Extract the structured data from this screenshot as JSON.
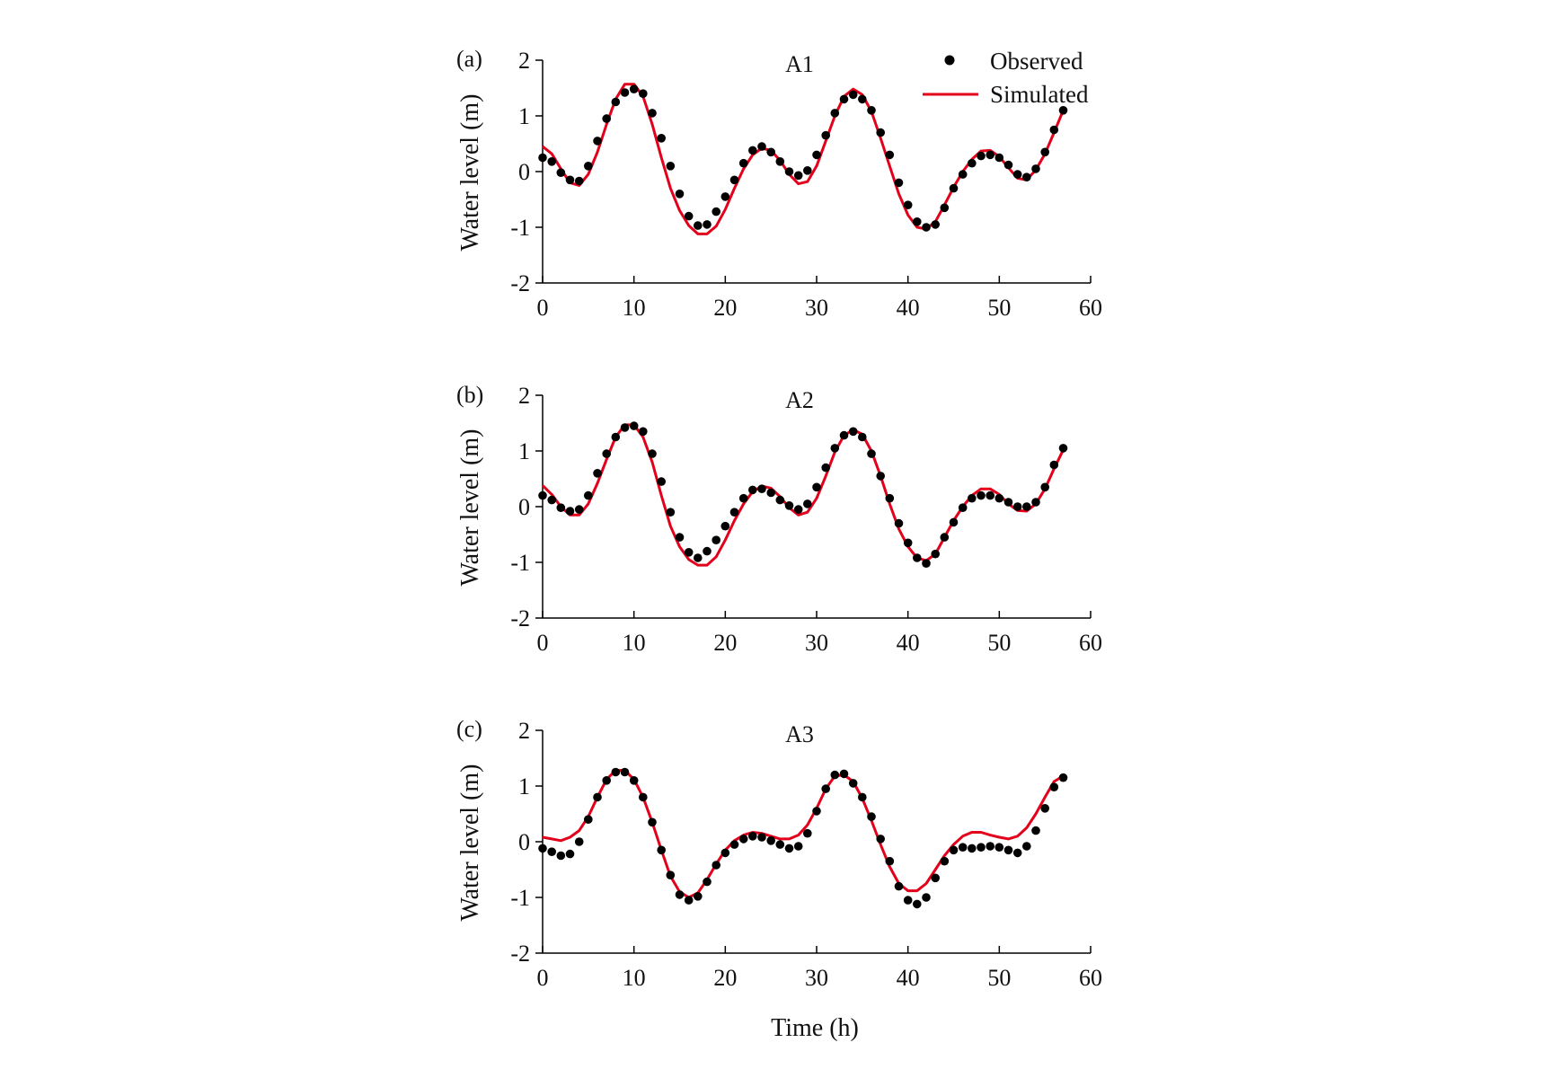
{
  "figure": {
    "xlabel": "Time (h)",
    "legend": {
      "observed_label": "Observed",
      "simulated_label": "Simulated",
      "placement": "top-right of panel (a)"
    },
    "colors": {
      "observed": "#000000",
      "simulated": "#e3001b",
      "axis": "#000000"
    }
  },
  "chart_data": [
    {
      "type": "line",
      "panel_label": "(a)",
      "title": "A1",
      "xlabel": "",
      "ylabel": "Water level  (m)",
      "xlim": [
        0,
        60
      ],
      "ylim": [
        -2,
        2
      ],
      "xticks": [
        0,
        10,
        20,
        30,
        40,
        50,
        60
      ],
      "yticks": [
        -2,
        -1,
        0,
        1,
        2
      ],
      "xtick_labels": [
        "0",
        "10",
        "20",
        "30",
        "40",
        "50",
        "60"
      ],
      "ytick_labels": [
        "-2",
        "-1",
        "0",
        "1",
        "2"
      ],
      "series": [
        {
          "name": "Observed",
          "style": "points",
          "x": [
            0,
            1,
            2,
            3,
            4,
            5,
            6,
            7,
            8,
            9,
            10,
            11,
            12,
            13,
            14,
            15,
            16,
            17,
            18,
            19,
            20,
            21,
            22,
            23,
            24,
            25,
            26,
            27,
            28,
            29,
            30,
            31,
            32,
            33,
            34,
            35,
            36,
            37,
            38,
            39,
            40,
            41,
            42,
            43,
            44,
            45,
            46,
            47,
            48,
            49,
            50,
            51,
            52,
            53,
            54,
            55,
            56,
            57
          ],
          "y": [
            0.25,
            0.18,
            -0.02,
            -0.15,
            -0.17,
            0.1,
            0.55,
            0.95,
            1.25,
            1.42,
            1.48,
            1.4,
            1.05,
            0.6,
            0.1,
            -0.4,
            -0.8,
            -0.97,
            -0.95,
            -0.72,
            -0.45,
            -0.15,
            0.15,
            0.38,
            0.45,
            0.35,
            0.18,
            0.0,
            -0.07,
            0.02,
            0.3,
            0.65,
            1.05,
            1.3,
            1.38,
            1.3,
            1.1,
            0.7,
            0.3,
            -0.2,
            -0.6,
            -0.9,
            -1.0,
            -0.95,
            -0.65,
            -0.3,
            -0.05,
            0.15,
            0.28,
            0.3,
            0.25,
            0.12,
            -0.05,
            -0.1,
            0.05,
            0.35,
            0.75,
            1.1
          ]
        },
        {
          "name": "Simulated",
          "style": "line",
          "x": [
            0,
            1,
            2,
            3,
            4,
            5,
            6,
            7,
            8,
            9,
            10,
            11,
            12,
            13,
            14,
            15,
            16,
            17,
            18,
            19,
            20,
            21,
            22,
            23,
            24,
            25,
            26,
            27,
            28,
            29,
            30,
            31,
            32,
            33,
            34,
            35,
            36,
            37,
            38,
            39,
            40,
            41,
            42,
            43,
            44,
            45,
            46,
            47,
            48,
            49,
            50,
            51,
            52,
            53,
            54,
            55,
            56,
            57
          ],
          "y": [
            0.45,
            0.32,
            0.05,
            -0.2,
            -0.25,
            -0.05,
            0.35,
            0.85,
            1.3,
            1.57,
            1.57,
            1.35,
            0.85,
            0.25,
            -0.3,
            -0.7,
            -0.97,
            -1.12,
            -1.12,
            -0.98,
            -0.68,
            -0.3,
            0.05,
            0.3,
            0.42,
            0.38,
            0.2,
            -0.05,
            -0.22,
            -0.18,
            0.1,
            0.55,
            1.0,
            1.35,
            1.48,
            1.38,
            1.08,
            0.6,
            0.1,
            -0.4,
            -0.78,
            -1.0,
            -1.03,
            -0.9,
            -0.6,
            -0.28,
            0.0,
            0.22,
            0.37,
            0.38,
            0.27,
            0.07,
            -0.12,
            -0.15,
            0.03,
            0.32,
            0.7,
            1.1
          ]
        }
      ]
    },
    {
      "type": "line",
      "panel_label": "(b)",
      "title": "A2",
      "xlabel": "",
      "ylabel": "Water level  (m)",
      "xlim": [
        0,
        60
      ],
      "ylim": [
        -2,
        2
      ],
      "xticks": [
        0,
        10,
        20,
        30,
        40,
        50,
        60
      ],
      "yticks": [
        -2,
        -1,
        0,
        1,
        2
      ],
      "xtick_labels": [
        "0",
        "10",
        "20",
        "30",
        "40",
        "50",
        "60"
      ],
      "ytick_labels": [
        "-2",
        "-1",
        "0",
        "1",
        "2"
      ],
      "series": [
        {
          "name": "Observed",
          "style": "points",
          "x": [
            0,
            1,
            2,
            3,
            4,
            5,
            6,
            7,
            8,
            9,
            10,
            11,
            12,
            13,
            14,
            15,
            16,
            17,
            18,
            19,
            20,
            21,
            22,
            23,
            24,
            25,
            26,
            27,
            28,
            29,
            30,
            31,
            32,
            33,
            34,
            35,
            36,
            37,
            38,
            39,
            40,
            41,
            42,
            43,
            44,
            45,
            46,
            47,
            48,
            49,
            50,
            51,
            52,
            53,
            54,
            55,
            56,
            57
          ],
          "y": [
            0.2,
            0.12,
            -0.02,
            -0.08,
            -0.05,
            0.2,
            0.6,
            0.95,
            1.25,
            1.42,
            1.45,
            1.35,
            0.95,
            0.45,
            -0.1,
            -0.55,
            -0.82,
            -0.92,
            -0.8,
            -0.6,
            -0.35,
            -0.1,
            0.15,
            0.3,
            0.32,
            0.25,
            0.12,
            0.02,
            -0.05,
            0.05,
            0.35,
            0.7,
            1.05,
            1.28,
            1.35,
            1.25,
            0.95,
            0.55,
            0.15,
            -0.3,
            -0.65,
            -0.92,
            -1.02,
            -0.85,
            -0.55,
            -0.28,
            -0.02,
            0.15,
            0.2,
            0.2,
            0.15,
            0.08,
            0.0,
            0.0,
            0.08,
            0.35,
            0.75,
            1.05
          ]
        },
        {
          "name": "Simulated",
          "style": "line",
          "x": [
            0,
            1,
            2,
            3,
            4,
            5,
            6,
            7,
            8,
            9,
            10,
            11,
            12,
            13,
            14,
            15,
            16,
            17,
            18,
            19,
            20,
            21,
            22,
            23,
            24,
            25,
            26,
            27,
            28,
            29,
            30,
            31,
            32,
            33,
            34,
            35,
            36,
            37,
            38,
            39,
            40,
            41,
            42,
            43,
            44,
            45,
            46,
            47,
            48,
            49,
            50,
            51,
            52,
            53,
            54,
            55,
            56,
            57
          ],
          "y": [
            0.38,
            0.22,
            0.0,
            -0.15,
            -0.15,
            0.05,
            0.42,
            0.85,
            1.25,
            1.47,
            1.47,
            1.25,
            0.8,
            0.2,
            -0.35,
            -0.72,
            -0.95,
            -1.05,
            -1.05,
            -0.9,
            -0.6,
            -0.25,
            0.05,
            0.27,
            0.37,
            0.33,
            0.18,
            -0.02,
            -0.15,
            -0.1,
            0.15,
            0.55,
            0.98,
            1.28,
            1.38,
            1.3,
            1.0,
            0.55,
            0.05,
            -0.4,
            -0.72,
            -0.92,
            -0.97,
            -0.85,
            -0.55,
            -0.25,
            0.0,
            0.2,
            0.32,
            0.32,
            0.22,
            0.05,
            -0.07,
            -0.08,
            0.05,
            0.32,
            0.68,
            1.02
          ]
        }
      ]
    },
    {
      "type": "line",
      "panel_label": "(c)",
      "title": "A3",
      "xlabel": "Time (h)",
      "ylabel": "Water level  (m)",
      "xlim": [
        0,
        60
      ],
      "ylim": [
        -2,
        2
      ],
      "xticks": [
        0,
        10,
        20,
        30,
        40,
        50,
        60
      ],
      "yticks": [
        -2,
        -1,
        0,
        1,
        2
      ],
      "xtick_labels": [
        "0",
        "10",
        "20",
        "30",
        "40",
        "50",
        "60"
      ],
      "ytick_labels": [
        "-2",
        "-1",
        "0",
        "1",
        "2"
      ],
      "series": [
        {
          "name": "Observed",
          "style": "points",
          "x": [
            0,
            1,
            2,
            3,
            4,
            5,
            6,
            7,
            8,
            9,
            10,
            11,
            12,
            13,
            14,
            15,
            16,
            17,
            18,
            19,
            20,
            21,
            22,
            23,
            24,
            25,
            26,
            27,
            28,
            29,
            30,
            31,
            32,
            33,
            34,
            35,
            36,
            37,
            38,
            39,
            40,
            41,
            42,
            43,
            44,
            45,
            46,
            47,
            48,
            49,
            50,
            51,
            52,
            53,
            54,
            55,
            56,
            57
          ],
          "y": [
            -0.12,
            -0.18,
            -0.25,
            -0.22,
            0.0,
            0.4,
            0.8,
            1.1,
            1.25,
            1.25,
            1.1,
            0.8,
            0.35,
            -0.15,
            -0.6,
            -0.95,
            -1.05,
            -0.98,
            -0.72,
            -0.42,
            -0.2,
            -0.05,
            0.05,
            0.1,
            0.08,
            0.02,
            -0.05,
            -0.12,
            -0.08,
            0.15,
            0.55,
            0.95,
            1.2,
            1.22,
            1.05,
            0.8,
            0.45,
            0.05,
            -0.35,
            -0.8,
            -1.05,
            -1.12,
            -1.0,
            -0.65,
            -0.35,
            -0.15,
            -0.1,
            -0.12,
            -0.1,
            -0.08,
            -0.1,
            -0.15,
            -0.2,
            -0.08,
            0.2,
            0.6,
            0.98,
            1.15
          ]
        },
        {
          "name": "Simulated",
          "style": "line",
          "x": [
            0,
            1,
            2,
            3,
            4,
            5,
            6,
            7,
            8,
            9,
            10,
            11,
            12,
            13,
            14,
            15,
            16,
            17,
            18,
            19,
            20,
            21,
            22,
            23,
            24,
            25,
            26,
            27,
            28,
            29,
            30,
            31,
            32,
            33,
            34,
            35,
            36,
            37,
            38,
            39,
            40,
            41,
            42,
            43,
            44,
            45,
            46,
            47,
            48,
            49,
            50,
            51,
            52,
            53,
            54,
            55,
            56,
            57
          ],
          "y": [
            0.08,
            0.05,
            0.02,
            0.08,
            0.2,
            0.45,
            0.8,
            1.12,
            1.28,
            1.28,
            1.12,
            0.8,
            0.35,
            -0.15,
            -0.62,
            -0.9,
            -1.0,
            -0.92,
            -0.68,
            -0.4,
            -0.15,
            0.02,
            0.12,
            0.17,
            0.15,
            0.1,
            0.05,
            0.05,
            0.12,
            0.3,
            0.6,
            0.95,
            1.18,
            1.2,
            1.08,
            0.78,
            0.38,
            -0.05,
            -0.45,
            -0.75,
            -0.88,
            -0.88,
            -0.75,
            -0.5,
            -0.25,
            -0.05,
            0.1,
            0.17,
            0.17,
            0.12,
            0.08,
            0.05,
            0.1,
            0.25,
            0.5,
            0.8,
            1.08,
            1.18
          ]
        }
      ]
    }
  ]
}
